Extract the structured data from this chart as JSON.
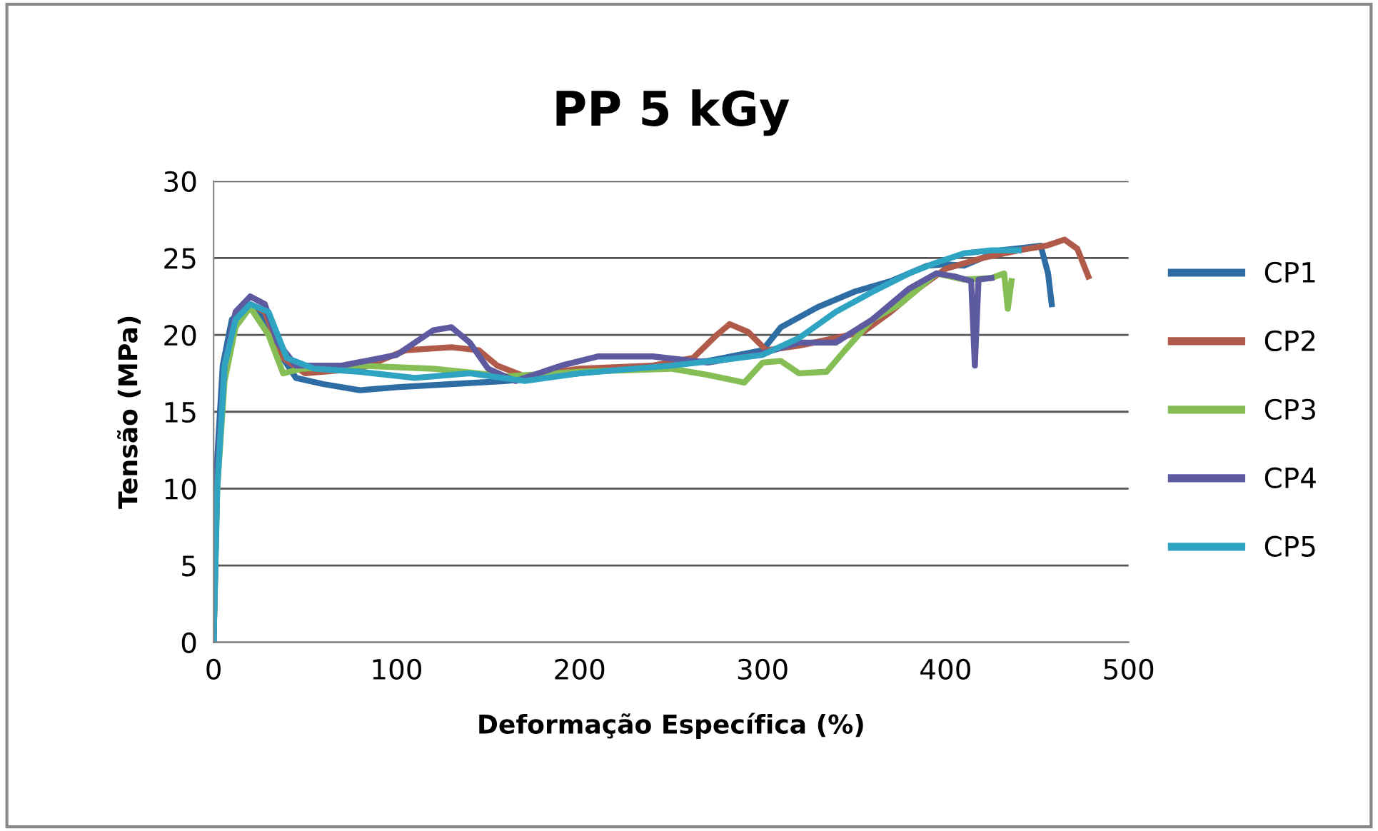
{
  "chart_data": {
    "type": "line",
    "title": "PP 5 kGy",
    "xlabel": "Deformação Específica (%)",
    "ylabel": "Tensão (MPa)",
    "xlim": [
      0,
      500
    ],
    "xticks": [
      0,
      100,
      200,
      300,
      400,
      500
    ],
    "ylim": [
      0,
      30
    ],
    "yticks": [
      0,
      5,
      10,
      15,
      20,
      25,
      30
    ],
    "grid": "y",
    "legend": "right",
    "marker": "none",
    "line_style": "solid",
    "series": [
      {
        "name": "CP1",
        "color": "#2e6ca4",
        "x": [
          0,
          2,
          5,
          10,
          20,
          28,
          35,
          45,
          60,
          80,
          100,
          130,
          160,
          200,
          240,
          270,
          300,
          310,
          330,
          350,
          370,
          390,
          400,
          410,
          430,
          445,
          452,
          456,
          458
        ],
        "values": [
          0,
          12,
          18,
          21,
          21.8,
          21,
          19,
          17.2,
          16.8,
          16.4,
          16.6,
          16.8,
          17,
          17.5,
          18,
          18.3,
          19,
          20.5,
          21.8,
          22.8,
          23.5,
          24.5,
          24.6,
          24.5,
          25.5,
          25.7,
          25.8,
          24,
          22
        ]
      },
      {
        "name": "CP2",
        "color": "#b05a4a",
        "x": [
          12,
          20,
          28,
          38,
          50,
          80,
          105,
          130,
          145,
          155,
          170,
          200,
          240,
          262,
          275,
          282,
          292,
          302,
          320,
          340,
          355,
          370,
          385,
          400,
          420,
          440,
          455,
          465,
          472,
          478
        ],
        "values": [
          21,
          22,
          21.5,
          18.5,
          17.5,
          17.8,
          19,
          19.2,
          19,
          18,
          17.3,
          17.8,
          18,
          18.5,
          20,
          20.7,
          20.2,
          19,
          19.3,
          19.8,
          20.2,
          21.5,
          23,
          24.3,
          25,
          25.5,
          25.8,
          26.2,
          25.6,
          23.8
        ]
      },
      {
        "name": "CP3",
        "color": "#86be56",
        "x": [
          0,
          2,
          6,
          12,
          20,
          30,
          38,
          48,
          80,
          120,
          160,
          200,
          250,
          270,
          290,
          300,
          310,
          320,
          335,
          345,
          360,
          375,
          385,
          395,
          410,
          425,
          432,
          434,
          436
        ],
        "values": [
          0,
          10,
          17,
          20.5,
          21.8,
          20,
          17.5,
          17.8,
          18,
          17.8,
          17.3,
          17.6,
          17.8,
          17.4,
          16.9,
          18.2,
          18.3,
          17.5,
          17.6,
          19,
          21,
          22,
          23,
          24,
          23.6,
          23.7,
          24,
          21.7,
          23.5
        ]
      },
      {
        "name": "CP4",
        "color": "#5e5aa0",
        "x": [
          0,
          2,
          6,
          12,
          20,
          28,
          35,
          45,
          70,
          100,
          120,
          130,
          140,
          150,
          165,
          190,
          210,
          240,
          270,
          300,
          320,
          340,
          360,
          380,
          395,
          405,
          414,
          416,
          418,
          425
        ],
        "values": [
          0,
          11,
          18,
          21.5,
          22.5,
          22,
          19.5,
          18,
          18,
          18.7,
          20.3,
          20.5,
          19.5,
          17.8,
          17,
          18,
          18.6,
          18.6,
          18.2,
          18.8,
          19.5,
          19.5,
          21,
          23,
          24,
          23.8,
          23.5,
          18,
          23.6,
          23.7
        ]
      },
      {
        "name": "CP5",
        "color": "#2ea3c2",
        "x": [
          0,
          2,
          6,
          12,
          20,
          30,
          40,
          55,
          80,
          110,
          140,
          170,
          200,
          250,
          280,
          300,
          320,
          340,
          360,
          380,
          395,
          410,
          425,
          440
        ],
        "values": [
          0,
          10,
          18,
          21,
          22,
          21.5,
          18.5,
          17.8,
          17.6,
          17.2,
          17.5,
          17,
          17.5,
          18,
          18.4,
          18.7,
          19.8,
          21.5,
          22.8,
          24,
          24.7,
          25.3,
          25.5,
          25.5
        ]
      }
    ]
  }
}
